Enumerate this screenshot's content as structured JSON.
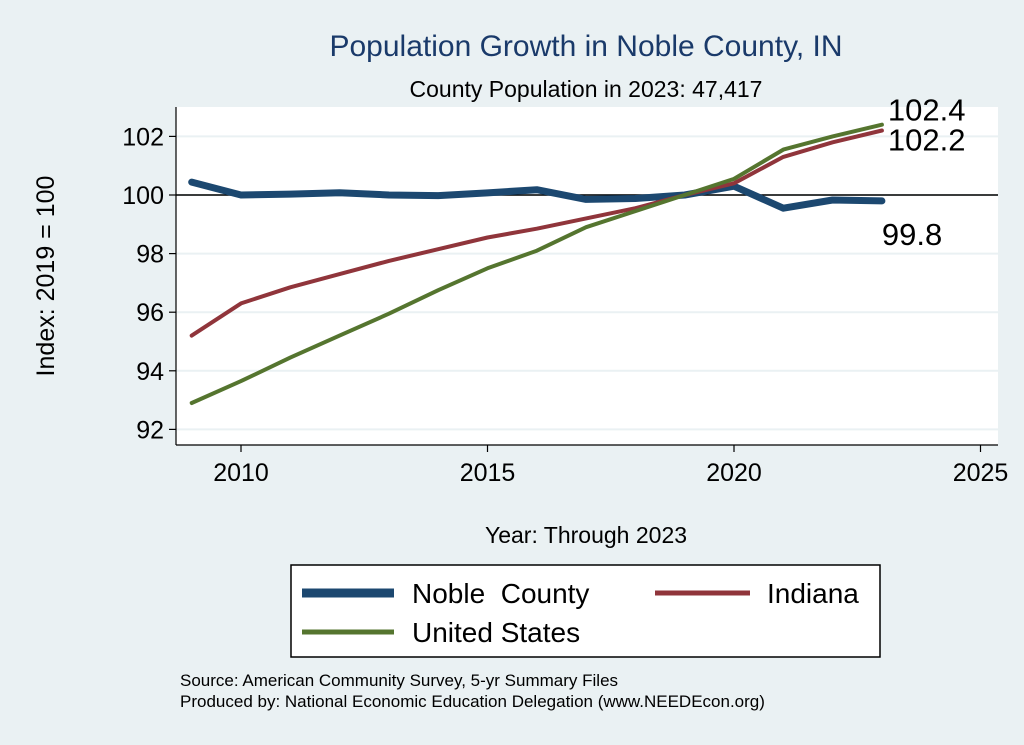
{
  "chart_data": {
    "type": "line",
    "title": "Population Growth in Noble County, IN",
    "subtitle": "County Population in 2023: 47,417",
    "xlabel": "Year: Through 2023",
    "ylabel": "Index: 2019 = 100",
    "xlim": [
      2008.7,
      2025.4
    ],
    "ylim": [
      91.5,
      103
    ],
    "xticks": [
      2010,
      2015,
      2020,
      2025
    ],
    "yticks": [
      92,
      94,
      96,
      98,
      100,
      102
    ],
    "reference_line": 100,
    "grid": true,
    "legend_position": "bottom",
    "x": [
      2009,
      2010,
      2011,
      2012,
      2013,
      2014,
      2015,
      2016,
      2017,
      2018,
      2019,
      2020,
      2021,
      2022,
      2023
    ],
    "series": [
      {
        "name": "Noble  County",
        "color": "#1c4870",
        "width": 7,
        "values": [
          100.44,
          100.0,
          100.03,
          100.08,
          100.0,
          99.98,
          100.07,
          100.18,
          99.85,
          99.88,
          100.0,
          100.3,
          99.55,
          99.83,
          99.8
        ],
        "end_label": "99.8"
      },
      {
        "name": "Indiana",
        "color": "#90353b",
        "width": 4,
        "values": [
          95.2,
          96.3,
          96.85,
          97.3,
          97.75,
          98.15,
          98.55,
          98.85,
          99.2,
          99.55,
          100.0,
          100.4,
          101.3,
          101.8,
          102.2
        ],
        "end_label": "102.2"
      },
      {
        "name": "United States",
        "color": "#55752f",
        "width": 4,
        "values": [
          92.9,
          93.65,
          94.45,
          95.2,
          95.95,
          96.75,
          97.5,
          98.1,
          98.9,
          99.45,
          100.0,
          100.55,
          101.55,
          102.0,
          102.4
        ],
        "end_label": "102.4"
      }
    ],
    "notes": [
      "Source: American Community Survey, 5-yr Summary Files",
      "Produced by: National Economic Education Delegation (www.NEEDEcon.org)"
    ]
  }
}
